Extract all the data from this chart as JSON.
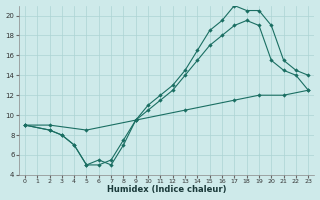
{
  "background_color": "#ceeaea",
  "grid_color": "#acd4d4",
  "line_color": "#1a6e62",
  "xlabel": "Humidex (Indice chaleur)",
  "xlim": [
    -0.5,
    23.5
  ],
  "ylim": [
    4,
    21
  ],
  "yticks": [
    4,
    6,
    8,
    10,
    12,
    14,
    16,
    18,
    20
  ],
  "xticks": [
    0,
    1,
    2,
    3,
    4,
    5,
    6,
    7,
    8,
    9,
    10,
    11,
    12,
    13,
    14,
    15,
    16,
    17,
    18,
    19,
    20,
    21,
    22,
    23
  ],
  "line1_x": [
    0,
    2,
    3,
    4,
    5,
    6,
    7,
    8,
    9,
    10,
    11,
    12,
    13,
    14,
    15,
    16,
    17,
    18,
    19,
    20,
    21,
    22,
    23
  ],
  "line1_y": [
    9.0,
    8.5,
    8.0,
    7.0,
    5.0,
    5.0,
    5.5,
    7.5,
    9.5,
    11.0,
    12.0,
    13.0,
    14.5,
    16.5,
    18.5,
    19.5,
    21.0,
    20.5,
    20.5,
    19.0,
    15.5,
    14.5,
    14.0
  ],
  "line2_x": [
    0,
    2,
    3,
    4,
    5,
    6,
    7,
    8,
    9,
    10,
    11,
    12,
    13,
    14,
    15,
    16,
    17,
    18,
    19,
    20,
    21,
    22,
    23
  ],
  "line2_y": [
    9.0,
    8.5,
    8.0,
    7.0,
    5.0,
    5.5,
    5.0,
    7.0,
    9.5,
    10.5,
    11.5,
    12.5,
    14.0,
    15.5,
    17.0,
    18.0,
    19.0,
    19.5,
    19.0,
    15.5,
    14.5,
    14.0,
    12.5
  ],
  "line3_x": [
    0,
    2,
    5,
    9,
    13,
    17,
    19,
    21,
    23
  ],
  "line3_y": [
    9.0,
    9.0,
    8.5,
    9.5,
    10.5,
    11.5,
    12.0,
    12.0,
    12.5
  ]
}
